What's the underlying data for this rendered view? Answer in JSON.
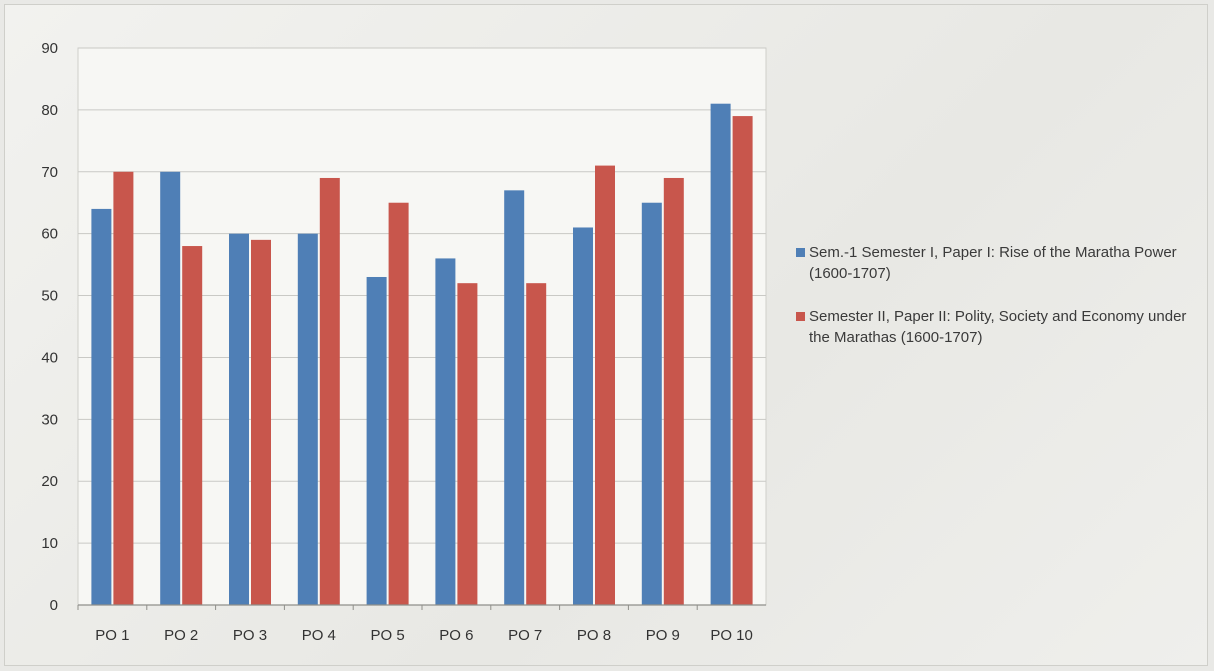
{
  "chart_data": {
    "type": "bar",
    "categories": [
      "PO 1",
      "PO 2",
      "PO 3",
      "PO 4",
      "PO 5",
      "PO 6",
      "PO 7",
      "PO 8",
      "PO 9",
      "PO 10"
    ],
    "series": [
      {
        "name": "Sem.-1 Semester I, Paper I: Rise of the Maratha Power (1600-1707)",
        "color": "#4f7fb6",
        "values": [
          64,
          70,
          60,
          60,
          53,
          56,
          67,
          61,
          65,
          81
        ]
      },
      {
        "name": "Semester II, Paper II: Polity, Society and Economy under the Marathas (1600-1707)",
        "color": "#c8564c",
        "values": [
          70,
          58,
          59,
          69,
          65,
          52,
          52,
          71,
          69,
          79
        ]
      }
    ],
    "yticks": [
      "0",
      "10",
      "20",
      "30",
      "40",
      "50",
      "60",
      "70",
      "80",
      "90"
    ],
    "ylim": [
      0,
      90
    ],
    "title": "",
    "xlabel": "",
    "ylabel": "",
    "grid": true,
    "legend_position": "right"
  }
}
